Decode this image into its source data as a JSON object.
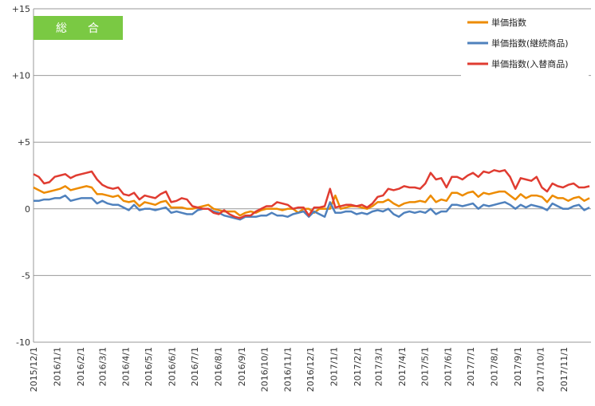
{
  "badge": {
    "label": "総　合",
    "color": "#7ac943"
  },
  "chart_data": {
    "type": "line",
    "title": "",
    "xlabel": "",
    "ylabel": "",
    "ylim": [
      -10,
      15
    ],
    "yticks": [
      -10,
      -5,
      0,
      5,
      10,
      15
    ],
    "ytick_labels": [
      "-10",
      "-5",
      "0",
      "+5",
      "+10",
      "+15"
    ],
    "grid": "horizontal",
    "legend_position": "top-right",
    "x_dates": [
      "2015/12/1",
      "2015/12/8",
      "2015/12/15",
      "2015/12/22",
      "2015/12/29",
      "2016/1/5",
      "2016/1/12",
      "2016/1/19",
      "2016/1/26",
      "2016/2/2",
      "2016/2/9",
      "2016/2/16",
      "2016/2/23",
      "2016/3/1",
      "2016/3/8",
      "2016/3/15",
      "2016/3/22",
      "2016/3/29",
      "2016/4/5",
      "2016/4/12",
      "2016/4/19",
      "2016/4/26",
      "2016/5/3",
      "2016/5/10",
      "2016/5/17",
      "2016/5/24",
      "2016/5/31",
      "2016/6/7",
      "2016/6/14",
      "2016/6/21",
      "2016/6/28",
      "2016/7/5",
      "2016/7/12",
      "2016/7/19",
      "2016/7/26",
      "2016/8/2",
      "2016/8/9",
      "2016/8/16",
      "2016/8/23",
      "2016/8/30",
      "2016/9/6",
      "2016/9/13",
      "2016/9/20",
      "2016/9/27",
      "2016/10/4",
      "2016/10/11",
      "2016/10/18",
      "2016/10/25",
      "2016/11/1",
      "2016/11/8",
      "2016/11/15",
      "2016/11/22",
      "2016/11/29",
      "2016/12/6",
      "2016/12/13",
      "2016/12/20",
      "2016/12/27",
      "2017/1/3",
      "2017/1/10",
      "2017/1/17",
      "2017/1/24",
      "2017/1/31",
      "2017/2/7",
      "2017/2/14",
      "2017/2/21",
      "2017/2/28",
      "2017/3/7",
      "2017/3/14",
      "2017/3/21",
      "2017/3/28",
      "2017/4/4",
      "2017/4/11",
      "2017/4/18",
      "2017/4/25",
      "2017/5/2",
      "2017/5/9",
      "2017/5/16",
      "2017/5/23",
      "2017/5/30",
      "2017/6/6",
      "2017/6/13",
      "2017/6/20",
      "2017/6/27",
      "2017/7/4",
      "2017/7/11",
      "2017/7/18",
      "2017/7/25",
      "2017/8/1",
      "2017/8/8",
      "2017/8/15",
      "2017/8/22",
      "2017/8/29",
      "2017/9/5",
      "2017/9/12",
      "2017/9/19",
      "2017/9/26",
      "2017/10/3",
      "2017/10/10",
      "2017/10/17",
      "2017/10/24",
      "2017/10/31",
      "2017/11/7",
      "2017/11/14",
      "2017/11/21",
      "2017/11/28",
      "2017/12/5"
    ],
    "xtick_labels": [
      "2015/12/1",
      "2016/1/1",
      "2016/2/1",
      "2016/3/1",
      "2016/4/1",
      "2016/5/1",
      "2016/6/1",
      "2016/7/1",
      "2016/8/1",
      "2016/9/1",
      "2016/10/1",
      "2016/11/1",
      "2016/12/1",
      "2017/1/1",
      "2017/2/1",
      "2017/3/1",
      "2017/4/1",
      "2017/5/1",
      "2017/6/1",
      "2017/7/1",
      "2017/8/1",
      "2017/9/1",
      "2017/10/1",
      "2017/11/1"
    ],
    "series": [
      {
        "name": "単価指数",
        "color": "#ed8b00",
        "values": [
          1.6,
          1.4,
          1.2,
          1.3,
          1.4,
          1.5,
          1.7,
          1.4,
          1.5,
          1.6,
          1.7,
          1.6,
          1.1,
          1.1,
          1.0,
          0.9,
          1.0,
          0.6,
          0.5,
          0.6,
          0.2,
          0.5,
          0.4,
          0.3,
          0.5,
          0.6,
          0.1,
          0.1,
          0.1,
          0.0,
          0.0,
          0.1,
          0.2,
          0.3,
          0.0,
          -0.1,
          -0.2,
          -0.2,
          -0.2,
          -0.5,
          -0.3,
          -0.2,
          -0.3,
          -0.1,
          0.0,
          0.0,
          0.0,
          -0.1,
          0.0,
          0.0,
          -0.3,
          0.0,
          0.0,
          -0.3,
          0.0,
          0.0,
          0.0,
          1.0,
          0.0,
          0.1,
          0.2,
          0.2,
          0.1,
          0.0,
          0.2,
          0.5,
          0.5,
          0.7,
          0.4,
          0.2,
          0.4,
          0.5,
          0.5,
          0.6,
          0.5,
          1.0,
          0.5,
          0.7,
          0.6,
          1.2,
          1.2,
          1.0,
          1.2,
          1.3,
          0.9,
          1.2,
          1.1,
          1.2,
          1.3,
          1.3,
          1.0,
          0.7,
          1.1,
          0.8,
          1.0,
          1.0,
          0.9,
          0.5,
          1.0,
          0.8,
          0.8,
          0.6,
          0.8,
          0.9,
          0.6,
          0.8
        ]
      },
      {
        "name": "単価指数(継続商品)",
        "color": "#4f81bd",
        "values": [
          0.6,
          0.6,
          0.7,
          0.7,
          0.8,
          0.8,
          1.0,
          0.6,
          0.7,
          0.8,
          0.8,
          0.8,
          0.4,
          0.6,
          0.4,
          0.3,
          0.3,
          0.1,
          -0.1,
          0.3,
          -0.1,
          0.0,
          0.0,
          -0.1,
          0.0,
          0.1,
          -0.3,
          -0.2,
          -0.3,
          -0.4,
          -0.4,
          -0.1,
          0.0,
          0.0,
          -0.2,
          -0.3,
          -0.5,
          -0.6,
          -0.7,
          -0.8,
          -0.6,
          -0.6,
          -0.6,
          -0.5,
          -0.5,
          -0.3,
          -0.5,
          -0.5,
          -0.6,
          -0.4,
          -0.3,
          -0.2,
          -0.6,
          -0.2,
          -0.4,
          -0.6,
          0.5,
          -0.3,
          -0.3,
          -0.2,
          -0.2,
          -0.4,
          -0.3,
          -0.4,
          -0.2,
          -0.1,
          -0.2,
          0.0,
          -0.4,
          -0.6,
          -0.3,
          -0.2,
          -0.3,
          -0.2,
          -0.3,
          0.0,
          -0.4,
          -0.2,
          -0.2,
          0.3,
          0.3,
          0.2,
          0.3,
          0.4,
          0.0,
          0.3,
          0.2,
          0.3,
          0.4,
          0.5,
          0.3,
          0.0,
          0.3,
          0.1,
          0.3,
          0.2,
          0.1,
          -0.1,
          0.4,
          0.2,
          0.0,
          0.0,
          0.2,
          0.3,
          -0.1,
          0.1
        ]
      },
      {
        "name": "単価指数(入替商品)",
        "color": "#e03c31",
        "values": [
          2.6,
          2.4,
          1.9,
          2.0,
          2.4,
          2.5,
          2.6,
          2.3,
          2.5,
          2.6,
          2.7,
          2.8,
          2.2,
          1.8,
          1.6,
          1.5,
          1.6,
          1.1,
          1.0,
          1.2,
          0.7,
          1.0,
          0.9,
          0.8,
          1.1,
          1.3,
          0.5,
          0.6,
          0.8,
          0.7,
          0.2,
          0.1,
          0.0,
          0.0,
          -0.3,
          -0.4,
          -0.1,
          -0.4,
          -0.6,
          -0.7,
          -0.5,
          -0.5,
          -0.2,
          0.0,
          0.2,
          0.2,
          0.5,
          0.4,
          0.3,
          0.0,
          0.1,
          0.1,
          -0.5,
          0.1,
          0.1,
          0.2,
          1.5,
          0.1,
          0.2,
          0.3,
          0.3,
          0.2,
          0.3,
          0.1,
          0.4,
          0.9,
          1.0,
          1.5,
          1.4,
          1.5,
          1.7,
          1.6,
          1.6,
          1.5,
          1.9,
          2.7,
          2.2,
          2.3,
          1.6,
          2.4,
          2.4,
          2.2,
          2.5,
          2.7,
          2.4,
          2.8,
          2.7,
          2.9,
          2.8,
          2.9,
          2.4,
          1.5,
          2.3,
          2.2,
          2.1,
          2.4,
          1.6,
          1.3,
          1.9,
          1.7,
          1.6,
          1.8,
          1.9,
          1.6,
          1.6,
          1.7
        ]
      }
    ]
  }
}
